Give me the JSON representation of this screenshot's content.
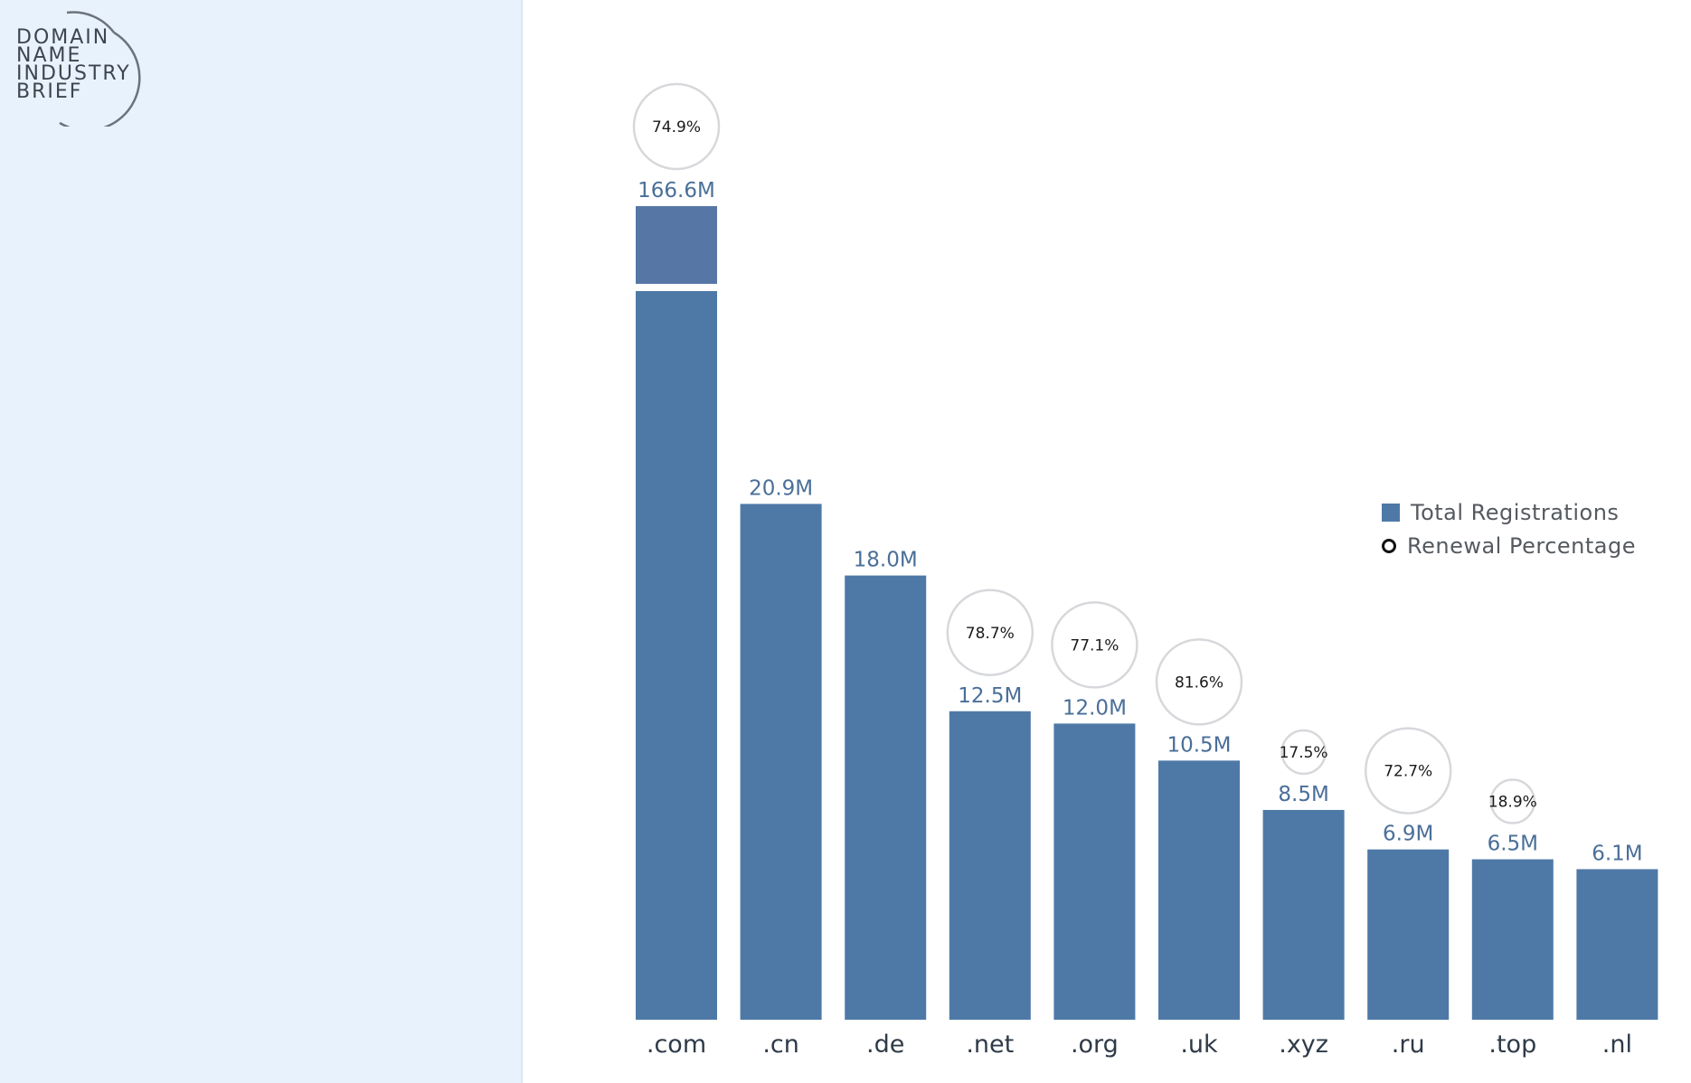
{
  "logo": {
    "lines": [
      "DOMAIN",
      "NAME",
      "INDUSTRY",
      "BRIEF"
    ]
  },
  "legend": {
    "bars_label": "Total Registrations",
    "circles_label": "Renewal Percentage"
  },
  "colors": {
    "bar": "#4e79a7",
    "bar_top": "#5677a6",
    "value_label": "#4a6f99",
    "category_label": "#2f3a48",
    "circle_stroke": "#d6d8db"
  },
  "chart_data": {
    "type": "bar",
    "categories": [
      ".com",
      ".cn",
      ".de",
      ".net",
      ".org",
      ".uk",
      ".xyz",
      ".ru",
      ".top",
      ".nl"
    ],
    "series": [
      {
        "name": "Total Registrations",
        "values": [
          166.6,
          20.9,
          18.0,
          12.5,
          12.0,
          10.5,
          8.5,
          6.9,
          6.5,
          6.1
        ],
        "labels": [
          "166.6M",
          "20.9M",
          "18.0M",
          "12.5M",
          "12.0M",
          "10.5M",
          "8.5M",
          "6.9M",
          "6.5M",
          "6.1M"
        ]
      },
      {
        "name": "Renewal Percentage",
        "values": [
          74.9,
          null,
          null,
          78.7,
          77.1,
          81.6,
          17.5,
          72.7,
          18.9,
          null
        ],
        "labels": [
          "74.9%",
          "",
          "",
          "78.7%",
          "77.1%",
          "81.6%",
          "17.5%",
          "72.7%",
          "18.9%",
          ""
        ]
      }
    ],
    "axis_break": true,
    "legend_position": "right",
    "grid": false
  }
}
